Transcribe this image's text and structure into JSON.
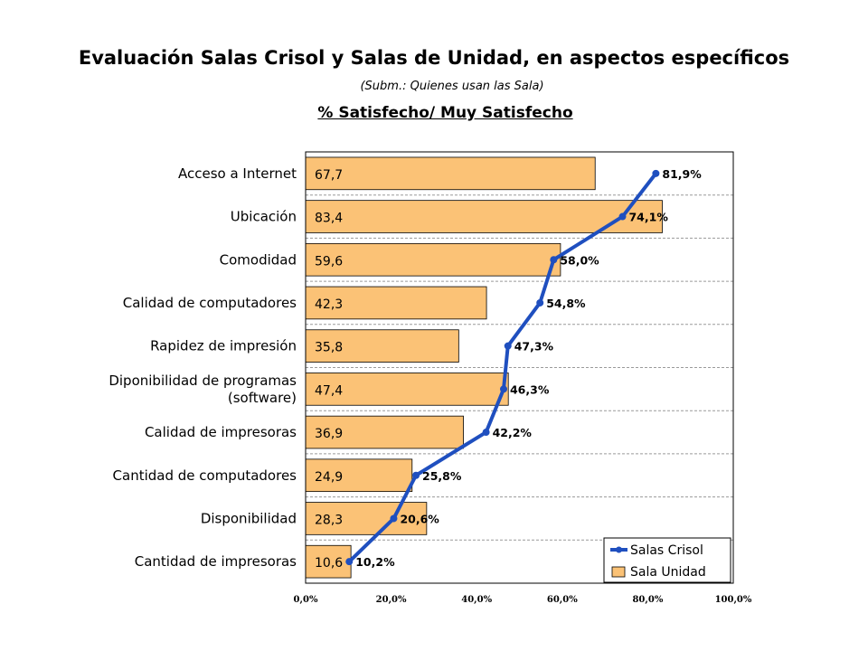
{
  "chart_data": {
    "type": "bar",
    "title": "Evaluación Salas Crisol y Salas de Unidad, en aspectos específicos",
    "subtitle": "(Subm.: Quienes usan las Sala)",
    "chart_title": "% Satisfecho/ Muy Satisfecho",
    "orientation": "horizontal",
    "categories": [
      "Acceso a Internet",
      "Ubicación",
      "Comodidad",
      "Calidad de computadores",
      "Rapidez de impresión",
      "Diponibilidad de programas\n(software)",
      "Calidad de impresoras",
      "Cantidad de computadores",
      "Disponibilidad",
      "Cantidad de impresoras"
    ],
    "series": [
      {
        "name": "Salas Crisol",
        "type": "line",
        "color": "#1f4fbf",
        "values": [
          81.9,
          74.1,
          58.0,
          54.8,
          47.3,
          46.3,
          42.2,
          25.8,
          20.6,
          10.2
        ],
        "labels": [
          "81,9%",
          "74,1%",
          "58,0%",
          "54,8%",
          "47,3%",
          "46,3%",
          "42,2%",
          "25,8%",
          "20,6%",
          "10,2%"
        ]
      },
      {
        "name": "Sala Unidad",
        "type": "bar",
        "color": "#fbc276",
        "values": [
          67.7,
          83.4,
          59.6,
          42.3,
          35.8,
          47.4,
          36.9,
          24.9,
          28.3,
          10.6
        ],
        "labels": [
          "67,7",
          "83,4",
          "59,6",
          "42,3",
          "35,8",
          "47,4",
          "36,9",
          "24,9",
          "28,3",
          "10,6"
        ]
      }
    ],
    "x_ticks": [
      "0,0%",
      "20,0%",
      "40,0%",
      "60,0%",
      "80,0%",
      "100,0%"
    ],
    "xlim": [
      0,
      100
    ],
    "grid": "horizontal",
    "legend": "bottom-right"
  }
}
